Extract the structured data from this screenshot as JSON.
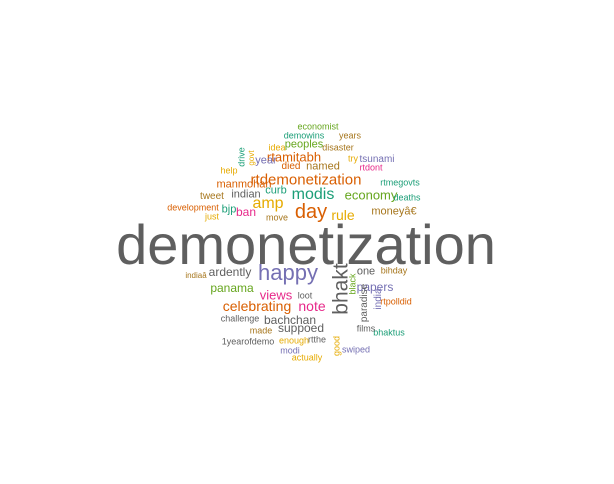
{
  "colors": {
    "gray": "#5f5f5f",
    "purple": "#7570b3",
    "orange": "#d95f02",
    "teal": "#1b9e77",
    "pink": "#e7298a",
    "green": "#66a61e",
    "gold": "#e6ab02",
    "brown": "#a6761d"
  },
  "words": [
    {
      "text": "demonetization",
      "color": "gray"
    },
    {
      "text": "happy",
      "color": "purple"
    },
    {
      "text": "bhakt",
      "color": "gray"
    },
    {
      "text": "day",
      "color": "orange"
    },
    {
      "text": "rtdemonetization",
      "color": "orange"
    },
    {
      "text": "modis",
      "color": "teal"
    },
    {
      "text": "amp",
      "color": "gold"
    },
    {
      "text": "rule",
      "color": "gold"
    },
    {
      "text": "economy",
      "color": "green"
    },
    {
      "text": "moneyâ€",
      "color": "brown"
    },
    {
      "text": "ban",
      "color": "pink"
    },
    {
      "text": "bjp",
      "color": "teal"
    },
    {
      "text": "curb",
      "color": "teal"
    },
    {
      "text": "indian",
      "color": "gray"
    },
    {
      "text": "named",
      "color": "brown"
    },
    {
      "text": "manmohan",
      "color": "orange"
    },
    {
      "text": "tweet",
      "color": "brown"
    },
    {
      "text": "development",
      "color": "orange"
    },
    {
      "text": "just",
      "color": "gold"
    },
    {
      "text": "move",
      "color": "brown"
    },
    {
      "text": "rtamitabh",
      "color": "orange"
    },
    {
      "text": "year",
      "color": "purple"
    },
    {
      "text": "peoples",
      "color": "green"
    },
    {
      "text": "died",
      "color": "orange"
    },
    {
      "text": "disaster",
      "color": "brown"
    },
    {
      "text": "tsunami",
      "color": "purple"
    },
    {
      "text": "rtdont",
      "color": "pink"
    },
    {
      "text": "try",
      "color": "gold"
    },
    {
      "text": "economist",
      "color": "green"
    },
    {
      "text": "demowins",
      "color": "teal"
    },
    {
      "text": "years",
      "color": "brown"
    },
    {
      "text": "idea",
      "color": "gold"
    },
    {
      "text": "help",
      "color": "gold"
    },
    {
      "text": "drive",
      "color": "teal"
    },
    {
      "text": "govt",
      "color": "gold"
    },
    {
      "text": "rtmegovts",
      "color": "teal"
    },
    {
      "text": "deaths",
      "color": "teal"
    },
    {
      "text": "ardently",
      "color": "gray"
    },
    {
      "text": "indiaâ",
      "color": "brown"
    },
    {
      "text": "panama",
      "color": "green"
    },
    {
      "text": "views",
      "color": "pink"
    },
    {
      "text": "celebrating",
      "color": "orange"
    },
    {
      "text": "note",
      "color": "pink"
    },
    {
      "text": "bachchan",
      "color": "gray"
    },
    {
      "text": "loot",
      "color": "gray"
    },
    {
      "text": "suppoed",
      "color": "gray"
    },
    {
      "text": "challenge",
      "color": "gray"
    },
    {
      "text": "made",
      "color": "brown"
    },
    {
      "text": "1yearofdemo",
      "color": "gray"
    },
    {
      "text": "enough",
      "color": "gold"
    },
    {
      "text": "rtthe",
      "color": "gray"
    },
    {
      "text": "modi",
      "color": "purple"
    },
    {
      "text": "actually",
      "color": "gold"
    },
    {
      "text": "swiped",
      "color": "purple"
    },
    {
      "text": "one",
      "color": "gray"
    },
    {
      "text": "bihday",
      "color": "brown"
    },
    {
      "text": "papers",
      "color": "purple"
    },
    {
      "text": "rtpolldid",
      "color": "orange"
    },
    {
      "text": "bhaktus",
      "color": "teal"
    },
    {
      "text": "films",
      "color": "gray"
    },
    {
      "text": "paradise",
      "color": "gray"
    },
    {
      "text": "india",
      "color": "purple"
    },
    {
      "text": "black",
      "color": "green"
    },
    {
      "text": "good",
      "color": "gold"
    }
  ]
}
